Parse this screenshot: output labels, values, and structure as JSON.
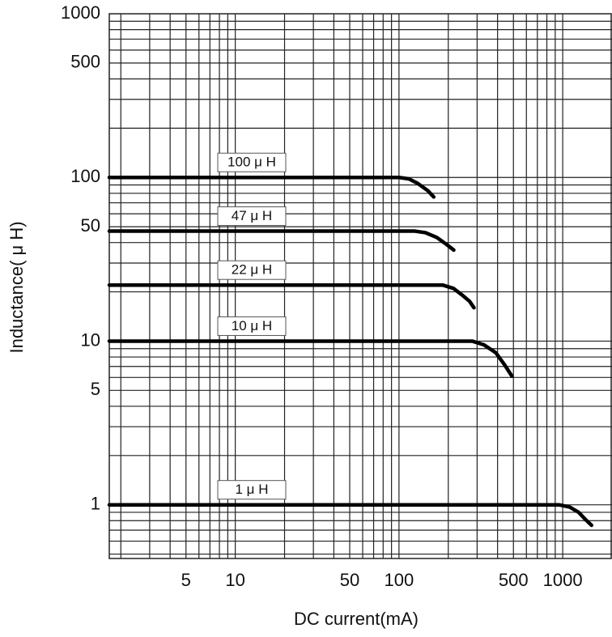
{
  "chart_data": {
    "type": "line",
    "xlabel": "DC current(mA)",
    "ylabel": "Inductance( μ H)",
    "xscale": "log",
    "yscale": "log",
    "xlim": [
      1.7,
      2000
    ],
    "ylim": [
      0.47,
      1000
    ],
    "xticks": [
      5,
      10,
      50,
      100,
      500,
      1000
    ],
    "yticks": [
      1,
      5,
      10,
      50,
      100,
      500,
      1000
    ],
    "xgrid": [
      2,
      3,
      4,
      5,
      6,
      7,
      8,
      9,
      10,
      20,
      30,
      40,
      50,
      60,
      70,
      80,
      90,
      100,
      200,
      300,
      400,
      500,
      600,
      700,
      800,
      900,
      1000
    ],
    "ygrid": [
      0.5,
      0.6,
      0.7,
      0.8,
      0.9,
      1,
      2,
      3,
      4,
      5,
      6,
      7,
      8,
      9,
      10,
      20,
      30,
      40,
      50,
      60,
      70,
      80,
      90,
      100,
      200,
      300,
      400,
      500,
      600,
      700,
      800,
      900
    ],
    "grid": true,
    "series": [
      {
        "name": "100 μ H",
        "color": "#000000",
        "x": [
          1.7,
          100,
          115,
          130,
          150,
          163
        ],
        "values": [
          100,
          100,
          98,
          92,
          83,
          76
        ]
      },
      {
        "name": "47 μ H",
        "color": "#000000",
        "x": [
          1.7,
          125,
          145,
          170,
          195,
          216
        ],
        "values": [
          47,
          47,
          46,
          43,
          39,
          36
        ]
      },
      {
        "name": "22 μ H",
        "color": "#000000",
        "x": [
          1.7,
          185,
          215,
          245,
          270,
          287
        ],
        "values": [
          22,
          22,
          21,
          19,
          17.5,
          16
        ]
      },
      {
        "name": "10 μ H",
        "color": "#000000",
        "x": [
          1.7,
          280,
          330,
          390,
          440,
          490
        ],
        "values": [
          10,
          10,
          9.5,
          8.5,
          7.2,
          6.1
        ]
      },
      {
        "name": "1 μ H",
        "color": "#000000",
        "x": [
          1.7,
          950,
          1100,
          1250,
          1400,
          1500
        ],
        "values": [
          1,
          1,
          0.97,
          0.9,
          0.8,
          0.75
        ]
      }
    ]
  }
}
